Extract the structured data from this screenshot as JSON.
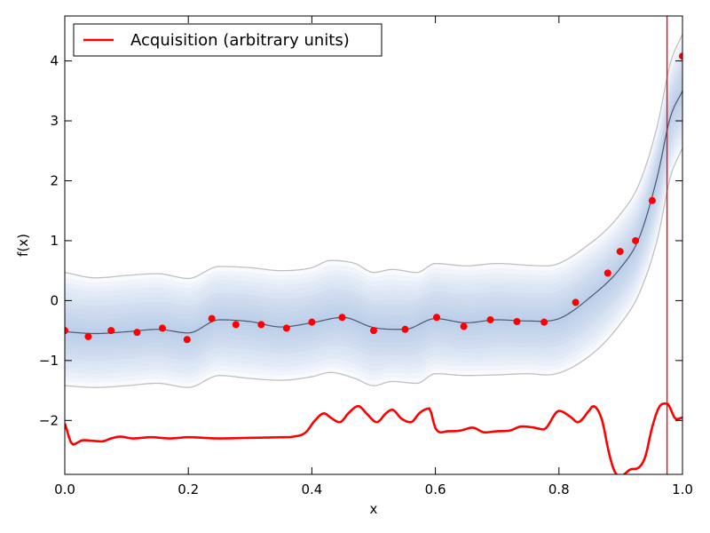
{
  "chart_data": {
    "type": "line",
    "title": "",
    "xlabel": "x",
    "ylabel": "f(x)",
    "xlim": [
      0.0,
      1.0
    ],
    "ylim": [
      -2.9,
      4.75
    ],
    "x_ticks": [
      0.0,
      0.2,
      0.4,
      0.6,
      0.8,
      1.0
    ],
    "x_tick_labels": [
      "0.0",
      "0.2",
      "0.4",
      "0.6",
      "0.8",
      "1.0"
    ],
    "y_ticks": [
      -2,
      -1,
      0,
      1,
      2,
      3,
      4
    ],
    "y_tick_labels": [
      "−2",
      "−1",
      "0",
      "1",
      "2",
      "3",
      "4"
    ],
    "grid": false,
    "legend": {
      "placement": "top-left",
      "entries": [
        {
          "label": "Acquisition (arbitrary units)",
          "color": "#ff0000"
        }
      ]
    },
    "observations": {
      "color": "#ff0000",
      "x": [
        0.0,
        0.038,
        0.075,
        0.117,
        0.158,
        0.198,
        0.238,
        0.277,
        0.318,
        0.359,
        0.4,
        0.449,
        0.5,
        0.551,
        0.602,
        0.646,
        0.689,
        0.732,
        0.776,
        0.827,
        0.879,
        0.899,
        0.924,
        0.951,
        1.0
      ],
      "y": [
        -0.5,
        -0.6,
        -0.5,
        -0.53,
        -0.46,
        -0.65,
        -0.3,
        -0.4,
        -0.4,
        -0.46,
        -0.36,
        -0.28,
        -0.5,
        -0.48,
        -0.28,
        -0.43,
        -0.32,
        -0.35,
        -0.36,
        -0.03,
        0.46,
        0.82,
        1.0,
        1.67,
        4.08
      ]
    },
    "gp_mean": {
      "color": "#4a5a6a",
      "x": [
        0.0,
        0.05,
        0.1,
        0.15,
        0.2,
        0.25,
        0.3,
        0.35,
        0.4,
        0.45,
        0.5,
        0.55,
        0.6,
        0.65,
        0.7,
        0.75,
        0.8,
        0.85,
        0.9,
        0.93,
        0.96,
        0.98,
        1.0
      ],
      "y": [
        -0.52,
        -0.55,
        -0.52,
        -0.48,
        -0.54,
        -0.32,
        -0.35,
        -0.44,
        -0.37,
        -0.28,
        -0.45,
        -0.48,
        -0.3,
        -0.37,
        -0.32,
        -0.34,
        -0.3,
        0.05,
        0.55,
        1.05,
        2.1,
        3.05,
        3.5
      ]
    },
    "gp_upper": {
      "color": "#c0c0c0",
      "x": [
        0.0,
        0.05,
        0.1,
        0.15,
        0.2,
        0.25,
        0.3,
        0.35,
        0.4,
        0.43,
        0.47,
        0.5,
        0.53,
        0.57,
        0.6,
        0.65,
        0.7,
        0.75,
        0.78,
        0.85,
        0.9,
        0.93,
        0.96,
        0.98,
        1.0
      ],
      "y": [
        0.47,
        0.38,
        0.42,
        0.45,
        0.37,
        0.57,
        0.55,
        0.5,
        0.55,
        0.67,
        0.62,
        0.47,
        0.52,
        0.47,
        0.62,
        0.58,
        0.62,
        0.59,
        0.58,
        0.95,
        1.45,
        1.95,
        2.95,
        3.95,
        4.45
      ]
    },
    "gp_lower": {
      "color": "#c0c0c0",
      "x": [
        0.0,
        0.05,
        0.1,
        0.15,
        0.2,
        0.25,
        0.3,
        0.35,
        0.4,
        0.43,
        0.47,
        0.5,
        0.53,
        0.57,
        0.6,
        0.65,
        0.7,
        0.75,
        0.78,
        0.85,
        0.9,
        0.93,
        0.96,
        0.98,
        1.0
      ],
      "y": [
        -1.42,
        -1.45,
        -1.42,
        -1.38,
        -1.45,
        -1.25,
        -1.3,
        -1.33,
        -1.27,
        -1.2,
        -1.3,
        -1.42,
        -1.35,
        -1.38,
        -1.22,
        -1.25,
        -1.24,
        -1.22,
        -1.24,
        -0.92,
        -0.38,
        0.12,
        1.05,
        2.05,
        2.55
      ]
    },
    "acquisition": {
      "label": "Acquisition (arbitrary units)",
      "color": "#ff0000",
      "x": [
        0.0,
        0.013,
        0.03,
        0.06,
        0.075,
        0.09,
        0.11,
        0.14,
        0.17,
        0.2,
        0.25,
        0.3,
        0.35,
        0.37,
        0.39,
        0.405,
        0.42,
        0.43,
        0.445,
        0.46,
        0.475,
        0.49,
        0.505,
        0.52,
        0.53,
        0.545,
        0.56,
        0.575,
        0.59,
        0.6,
        0.62,
        0.64,
        0.66,
        0.68,
        0.7,
        0.72,
        0.74,
        0.76,
        0.775,
        0.8,
        0.82,
        0.83,
        0.85,
        0.855,
        0.87,
        0.88,
        0.89,
        0.9,
        0.915,
        0.93,
        0.94,
        0.95,
        0.962,
        0.975,
        0.99,
        1.0
      ],
      "y": [
        -2.05,
        -2.4,
        -2.33,
        -2.35,
        -2.3,
        -2.27,
        -2.3,
        -2.28,
        -2.3,
        -2.28,
        -2.3,
        -2.29,
        -2.28,
        -2.27,
        -2.2,
        -2.0,
        -1.88,
        -1.95,
        -2.03,
        -1.87,
        -1.76,
        -1.9,
        -2.03,
        -1.88,
        -1.82,
        -1.97,
        -2.03,
        -1.87,
        -1.8,
        -2.13,
        -2.18,
        -2.17,
        -2.12,
        -2.2,
        -2.18,
        -2.17,
        -2.1,
        -2.12,
        -2.15,
        -1.84,
        -1.95,
        -2.03,
        -1.82,
        -1.76,
        -2.0,
        -2.5,
        -2.85,
        -2.93,
        -2.82,
        -2.78,
        -2.6,
        -2.15,
        -1.78,
        -1.72,
        -1.98,
        -1.95
      ]
    },
    "vline": {
      "x": 0.975,
      "color": "#ff0000"
    }
  }
}
